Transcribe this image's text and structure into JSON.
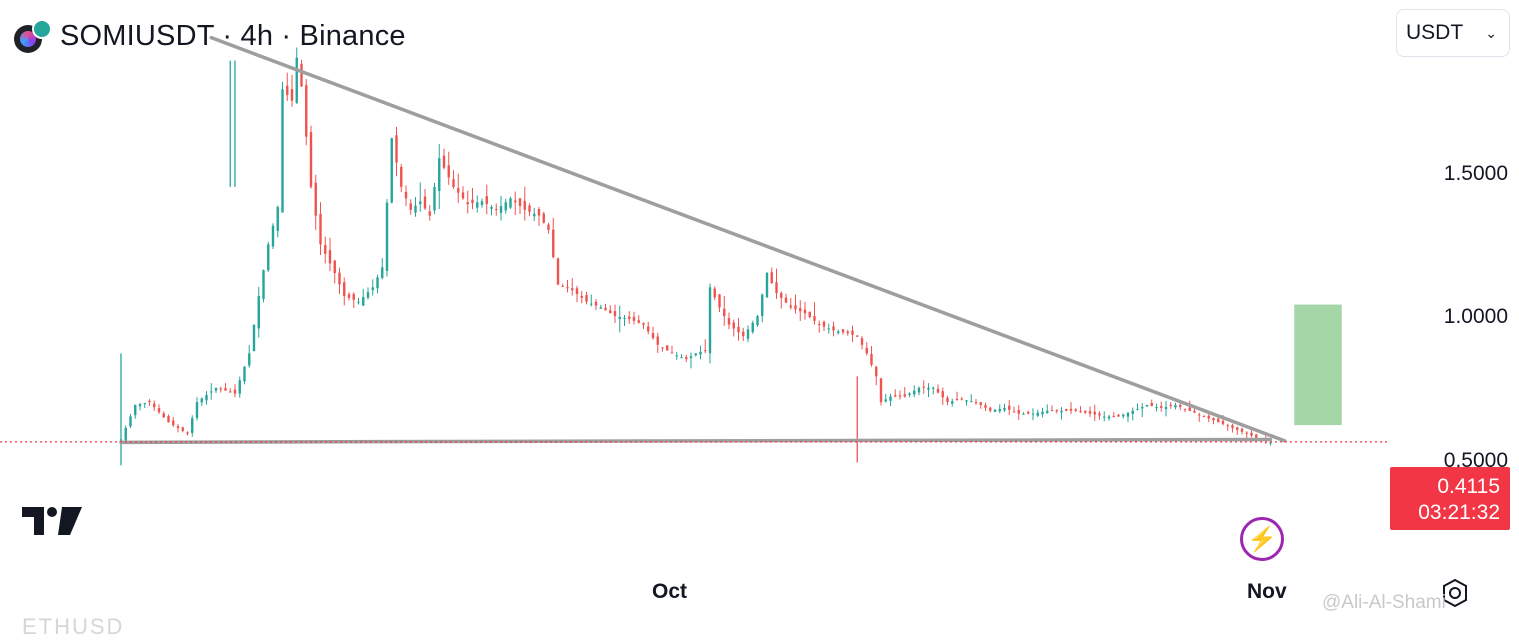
{
  "header": {
    "title": "SOMIUSDT · 4h · Binance",
    "currency_select": "USDT",
    "chevron_icon": "chevron-down-icon"
  },
  "price_tag": {
    "price": "0.4115",
    "countdown": "03:21:32"
  },
  "watermark": "@Ali-Al-Shami",
  "bottom_partial_text": "ETHUSD",
  "colors": {
    "up": "#26a69a",
    "down": "#ef5350",
    "trendline": "#9e9e9e",
    "target": "#a5d6a7",
    "price_line": "#f23645",
    "bolt": "#9c27b0"
  },
  "chart_data": {
    "type": "candlestick",
    "title": "SOMIUSDT · 4h · Binance",
    "y_ticks": [
      "1.5000",
      "1.0000",
      "0.5000"
    ],
    "y_tick_values": [
      1.5,
      1.0,
      0.5
    ],
    "x_ticks": [
      "Oct",
      "Nov"
    ],
    "ylim": [
      0.3,
      1.96
    ],
    "last_price": 0.4115,
    "close_path": [
      [
        0,
        0.42
      ],
      [
        3,
        0.54
      ],
      [
        6,
        0.55
      ],
      [
        10,
        0.48
      ],
      [
        14,
        0.44
      ],
      [
        16,
        0.55
      ],
      [
        20,
        0.6
      ],
      [
        24,
        0.58
      ],
      [
        27,
        0.72
      ],
      [
        29,
        0.92
      ],
      [
        31,
        1.1
      ],
      [
        33,
        1.23
      ],
      [
        34,
        1.64
      ],
      [
        36,
        1.6
      ],
      [
        37,
        1.75
      ],
      [
        38,
        1.65
      ],
      [
        40,
        1.3
      ],
      [
        42,
        1.1
      ],
      [
        45,
        1.0
      ],
      [
        47,
        0.92
      ],
      [
        50,
        0.9
      ],
      [
        53,
        0.95
      ],
      [
        55,
        1.02
      ],
      [
        57,
        1.47
      ],
      [
        59,
        1.3
      ],
      [
        61,
        1.22
      ],
      [
        63,
        1.25
      ],
      [
        65,
        1.2
      ],
      [
        67,
        1.4
      ],
      [
        70,
        1.3
      ],
      [
        73,
        1.24
      ],
      [
        76,
        1.25
      ],
      [
        79,
        1.22
      ],
      [
        82,
        1.26
      ],
      [
        85,
        1.22
      ],
      [
        88,
        1.2
      ],
      [
        90,
        1.15
      ],
      [
        92,
        0.96
      ],
      [
        95,
        0.94
      ],
      [
        98,
        0.9
      ],
      [
        101,
        0.88
      ],
      [
        104,
        0.85
      ],
      [
        107,
        0.84
      ],
      [
        110,
        0.82
      ],
      [
        113,
        0.75
      ],
      [
        116,
        0.72
      ],
      [
        119,
        0.7
      ],
      [
        121,
        0.72
      ],
      [
        123,
        0.73
      ],
      [
        124,
        0.95
      ],
      [
        126,
        0.88
      ],
      [
        128,
        0.82
      ],
      [
        131,
        0.78
      ],
      [
        134,
        0.85
      ],
      [
        136,
        1.0
      ],
      [
        138,
        0.93
      ],
      [
        141,
        0.88
      ],
      [
        144,
        0.86
      ],
      [
        147,
        0.82
      ],
      [
        150,
        0.8
      ],
      [
        153,
        0.79
      ],
      [
        155,
        0.78
      ],
      [
        157,
        0.72
      ],
      [
        159,
        0.64
      ],
      [
        160,
        0.55
      ],
      [
        162,
        0.57
      ],
      [
        165,
        0.57
      ],
      [
        168,
        0.6
      ],
      [
        171,
        0.6
      ],
      [
        174,
        0.55
      ],
      [
        177,
        0.56
      ],
      [
        180,
        0.55
      ],
      [
        183,
        0.52
      ],
      [
        186,
        0.53
      ],
      [
        189,
        0.51
      ],
      [
        192,
        0.51
      ],
      [
        195,
        0.52
      ],
      [
        198,
        0.52
      ],
      [
        201,
        0.52
      ],
      [
        204,
        0.51
      ],
      [
        207,
        0.5
      ],
      [
        210,
        0.5
      ],
      [
        213,
        0.52
      ],
      [
        216,
        0.54
      ],
      [
        219,
        0.53
      ],
      [
        222,
        0.54
      ],
      [
        225,
        0.52
      ],
      [
        228,
        0.5
      ],
      [
        231,
        0.48
      ],
      [
        234,
        0.46
      ],
      [
        237,
        0.44
      ],
      [
        240,
        0.42
      ],
      [
        242,
        0.41
      ]
    ],
    "trendlines": [
      {
        "name": "descending-resistance",
        "x": [
          19,
          245
        ],
        "y": [
          1.82,
          0.415
        ]
      },
      {
        "name": "horizontal-support",
        "x": [
          0,
          242
        ],
        "y": [
          0.41,
          0.42
        ]
      }
    ],
    "target_box": {
      "x": [
        247,
        257
      ],
      "y": [
        0.47,
        0.89
      ]
    },
    "price_line": 0.4115
  }
}
